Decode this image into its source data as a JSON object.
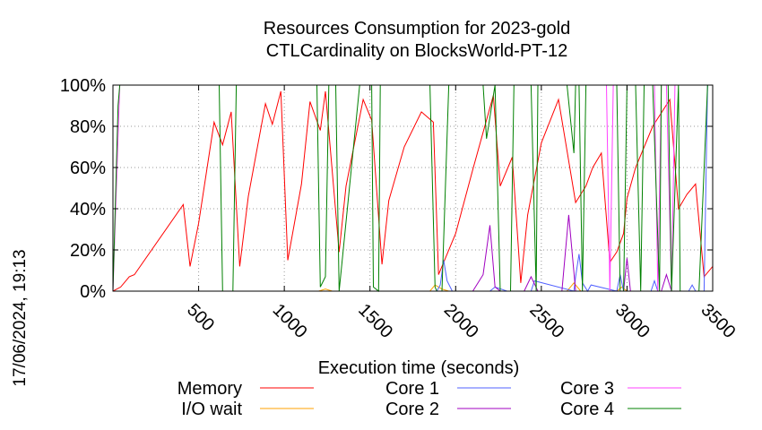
{
  "chart_data": {
    "type": "line",
    "title": [
      "Resources Consumption for 2023-gold",
      "CTLCardinality on BlocksWorld-PT-12"
    ],
    "xlabel": "Execution time (seconds)",
    "ylabel": "",
    "timestamp": "17/06/2024, 19:13",
    "xlim": [
      0,
      3500
    ],
    "ylim": [
      0,
      100
    ],
    "x_ticks": [
      500,
      1000,
      1500,
      2000,
      2500,
      3000,
      3500
    ],
    "x_tick_labels": [
      "500",
      "1000",
      "1500",
      "2000",
      "2500",
      "3000",
      "3500"
    ],
    "y_ticks": [
      0,
      20,
      40,
      60,
      80,
      100
    ],
    "y_tick_labels": [
      "0%",
      "20%",
      "40%",
      "60%",
      "80%",
      "100%"
    ],
    "grid": true,
    "legend_position": "bottom",
    "series": [
      {
        "name": "Memory",
        "color": "#ff0000",
        "x": [
          0,
          45,
          95,
          125,
          410,
          450,
          500,
          590,
          640,
          690,
          740,
          790,
          890,
          930,
          980,
          1020,
          1100,
          1150,
          1210,
          1240,
          1320,
          1360,
          1460,
          1510,
          1570,
          1610,
          1700,
          1800,
          1870,
          1900,
          2000,
          2100,
          2220,
          2260,
          2330,
          2380,
          2420,
          2500,
          2600,
          2700,
          2760,
          2800,
          2850,
          2900,
          2940,
          2980,
          3000,
          3050,
          3150,
          3250,
          3300,
          3350,
          3400,
          3450,
          3500
        ],
        "y": [
          0,
          2,
          7,
          8,
          42,
          12,
          33,
          82,
          71,
          87,
          12,
          46,
          91,
          81,
          97,
          15,
          52,
          92,
          78,
          97,
          19,
          51,
          93,
          83,
          13,
          44,
          70,
          87,
          82,
          8,
          28,
          59,
          95,
          51,
          65,
          4,
          37,
          72,
          93,
          43,
          51,
          60,
          67,
          14,
          19,
          28,
          45,
          60,
          80,
          93,
          40,
          47,
          52,
          7,
          12
        ]
      },
      {
        "name": "I/O wait",
        "color": "#ffa000",
        "x": [
          0,
          1200,
          1240,
          1280,
          1850,
          1880,
          1920,
          1960,
          2650,
          2690,
          2730,
          2940,
          2970,
          3000,
          3500
        ],
        "y": [
          0,
          0,
          1,
          0,
          0,
          3,
          1,
          0,
          0,
          4,
          0,
          0,
          2,
          0,
          0
        ]
      },
      {
        "name": "Core 1",
        "color": "#5060ff",
        "x": [
          0,
          1890,
          1910,
          1930,
          1950,
          1980,
          2000,
          2200,
          2230,
          2300,
          2440,
          2460,
          2690,
          2700,
          2720,
          2740,
          2770,
          2790,
          2940,
          2960,
          2980,
          3140,
          3160,
          3180,
          3360,
          3380,
          3400,
          3450,
          3470,
          3500
        ],
        "y": [
          0,
          0,
          3,
          15,
          5,
          0,
          0,
          0,
          2,
          0,
          0,
          5,
          0,
          7,
          18,
          4,
          0,
          3,
          0,
          8,
          0,
          0,
          5,
          0,
          0,
          3,
          0,
          0,
          100,
          100
        ]
      },
      {
        "name": "Core 2",
        "color": "#a000c0",
        "x": [
          0,
          2100,
          2160,
          2200,
          2230,
          2260,
          2400,
          2440,
          2480,
          2620,
          2660,
          2700,
          2980,
          3000,
          3020,
          3200,
          3230,
          3260,
          3500
        ],
        "y": [
          0,
          0,
          8,
          32,
          2,
          0,
          0,
          7,
          0,
          0,
          37,
          0,
          0,
          16,
          0,
          0,
          8,
          0,
          0
        ]
      },
      {
        "name": "Core 3",
        "color": "#ff40ff",
        "x": [
          0,
          40,
          300,
          720,
          1000,
          1400,
          1860,
          1900,
          2100,
          2260,
          2340,
          2400,
          2600,
          2720,
          2800,
          2850,
          2880,
          2900,
          2920,
          3080,
          3160,
          3180,
          3200,
          3230,
          3260,
          3280,
          3300,
          3500
        ],
        "y": [
          0,
          100,
          100,
          100,
          100,
          100,
          100,
          100,
          100,
          100,
          100,
          100,
          100,
          100,
          100,
          100,
          100,
          0,
          100,
          100,
          100,
          0,
          100,
          100,
          0,
          100,
          100,
          100
        ]
      },
      {
        "name": "Core 4",
        "color": "#008000",
        "x": [
          0,
          30,
          40,
          520,
          620,
          640,
          700,
          720,
          1190,
          1210,
          1240,
          1260,
          1300,
          1320,
          1440,
          1510,
          1520,
          1550,
          1560,
          1850,
          1880,
          1890,
          1920,
          1960,
          2100,
          2160,
          2180,
          2230,
          2260,
          2320,
          2340,
          2440,
          2470,
          2480,
          2540,
          2600,
          2650,
          2690,
          2700,
          2720,
          2740,
          2760,
          2790,
          2940,
          2960,
          2980,
          3000,
          3050,
          3080,
          3100,
          3150,
          3190,
          3200,
          3240,
          3260,
          3300,
          3310,
          3400,
          3420,
          3470,
          3500
        ],
        "y": [
          0,
          90,
          100,
          100,
          100,
          0,
          0,
          100,
          100,
          2,
          7,
          100,
          100,
          0,
          100,
          100,
          2,
          0,
          100,
          100,
          2,
          0,
          0,
          100,
          100,
          100,
          74,
          100,
          0,
          0,
          100,
          100,
          0,
          100,
          100,
          100,
          100,
          67,
          100,
          100,
          0,
          100,
          100,
          100,
          0,
          0,
          100,
          100,
          0,
          100,
          100,
          0,
          100,
          100,
          0,
          100,
          0,
          0,
          0,
          100,
          100
        ]
      }
    ]
  }
}
